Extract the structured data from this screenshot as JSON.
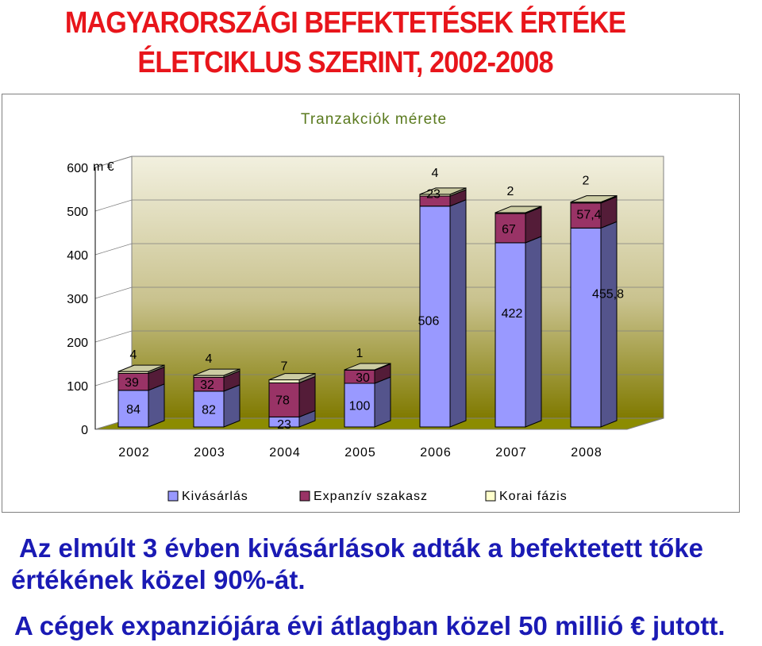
{
  "slide": {
    "title_line1": "MAGYARORSZÁGI BEFEKTETÉSEK ÉRTÉKE",
    "title_line2": "ÉLETCIKLUS SZERINT, 2002-2008",
    "note_line1": "Az elmúlt 3 évben kivásárlások adták a befektetett tőke",
    "note_line2": "értékének közel 90%-át.",
    "note_line3": "A cégek expanziójára évi átlagban közel 50 millió € jutott."
  },
  "chart_data": {
    "type": "bar",
    "stacked": true,
    "three_d": true,
    "title": "Tranzakciók mérete",
    "unit_label": "m €",
    "categories": [
      "2002",
      "2003",
      "2004",
      "2005",
      "2006",
      "2007",
      "2008"
    ],
    "series": [
      {
        "name": "Kivásárlás",
        "values": [
          84,
          82,
          23,
          100,
          506,
          422,
          455.8
        ],
        "labels": [
          "84",
          "82",
          "23",
          "100",
          "506",
          "422",
          "455,8"
        ],
        "color": "#9999ff"
      },
      {
        "name": "Expanzív szakasz",
        "values": [
          39,
          32,
          78,
          30,
          23,
          67,
          57.4
        ],
        "labels": [
          "39",
          "32",
          "78",
          "30",
          "23",
          "67",
          "57,4"
        ],
        "color": "#993366"
      },
      {
        "name": "Korai fázis",
        "values": [
          4,
          4,
          7,
          1,
          4,
          2,
          2
        ],
        "labels": [
          "4",
          "4",
          "7",
          "1",
          "4",
          "2",
          "2"
        ],
        "color": "#ffffcc"
      }
    ],
    "ylim": [
      0,
      600
    ],
    "yticks": [
      "0",
      "100",
      "200",
      "300",
      "400",
      "500",
      "600"
    ],
    "legend_position": "bottom",
    "grid": true,
    "colors": {
      "title": "#5a7a1e",
      "wall_top": "#f2f0df",
      "wall_bottom": "#807a00",
      "floor": "#8c8c00"
    }
  }
}
